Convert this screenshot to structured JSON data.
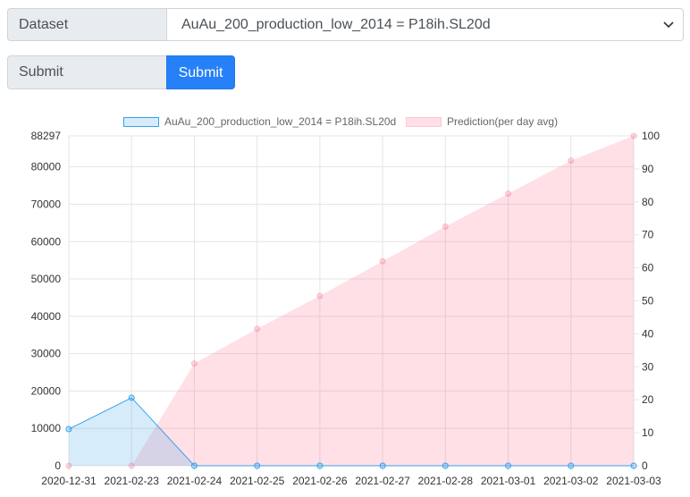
{
  "form": {
    "dataset_label": "Dataset",
    "dataset_selected": "AuAu_200_production_low_2014 = P18ih.SL20d",
    "submit_field_label": "Submit",
    "submit_button_label": "Submit"
  },
  "colors": {
    "series1_fill": "rgba(54,162,235,0.2)",
    "series1_stroke": "#36a2eb",
    "series2_fill": "rgba(255,99,132,0.2)",
    "series2_stroke": "#ff6384",
    "button": "#2680f7"
  },
  "chart_data": {
    "type": "area",
    "x": [
      "2020-12-31",
      "2021-02-23",
      "2021-02-24",
      "2021-02-25",
      "2021-02-26",
      "2021-02-27",
      "2021-02-28",
      "2021-03-01",
      "2021-03-02",
      "2021-03-03"
    ],
    "series": [
      {
        "name": "AuAu_200_production_low_2014 = P18ih.SL20d",
        "axis": "left",
        "values": [
          9800,
          18200,
          0,
          0,
          0,
          0,
          0,
          0,
          0,
          0
        ]
      },
      {
        "name": "Prediction(per day avg)",
        "axis": "right",
        "values": [
          0,
          0,
          31,
          41.5,
          51.5,
          62,
          72.5,
          82.5,
          92.5,
          100
        ]
      }
    ],
    "y_left": {
      "ylim": [
        0,
        88297
      ],
      "ticks": [
        0,
        10000,
        20000,
        30000,
        40000,
        50000,
        60000,
        70000,
        80000,
        88297
      ]
    },
    "y_right": {
      "ylim": [
        0,
        100
      ],
      "ticks": [
        0,
        10,
        20,
        30,
        40,
        50,
        60,
        70,
        80,
        90,
        100
      ]
    },
    "grid": true,
    "legend_position": "top"
  }
}
